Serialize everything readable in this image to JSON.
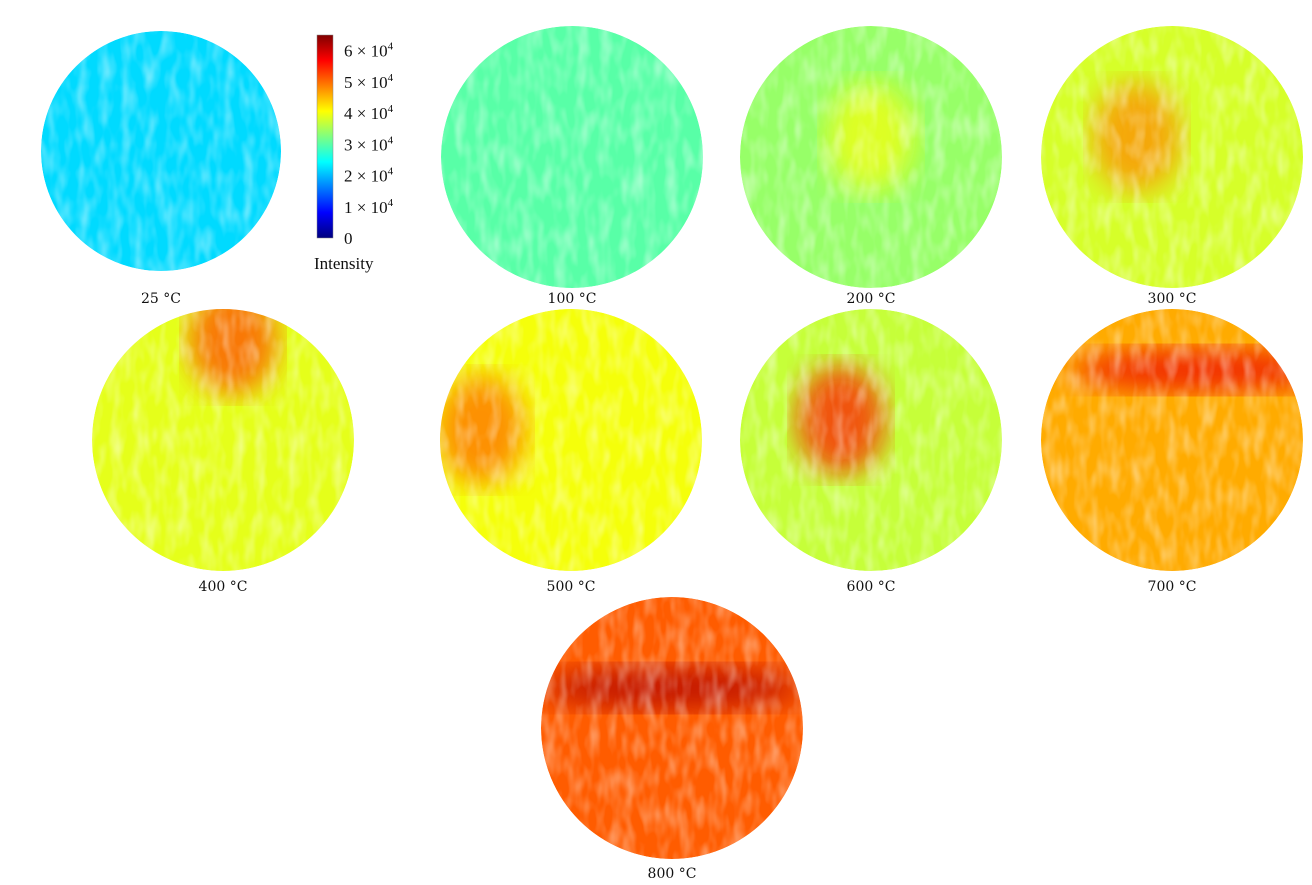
{
  "chart_data": {
    "type": "heatmap",
    "colormap": "jet",
    "colorbar": {
      "label": "Intensity",
      "range": [
        0,
        65000
      ],
      "ticks": [
        {
          "value": 60000,
          "label": "6 × 10",
          "exp": "4"
        },
        {
          "value": 50000,
          "label": "5 × 10",
          "exp": "4"
        },
        {
          "value": 40000,
          "label": "4 × 10",
          "exp": "4"
        },
        {
          "value": 30000,
          "label": "3 × 10",
          "exp": "4"
        },
        {
          "value": 20000,
          "label": "2 × 10",
          "exp": "4"
        },
        {
          "value": 10000,
          "label": "1 × 10",
          "exp": "4"
        },
        {
          "value": 0,
          "label": "0",
          "exp": ""
        }
      ]
    },
    "panels": [
      {
        "label": "25 °C",
        "mean_intensity": 22000,
        "hotspots": []
      },
      {
        "label": "100 °C",
        "mean_intensity": 30000,
        "hotspots": []
      },
      {
        "label": "200 °C",
        "mean_intensity": 34000,
        "hotspots": [
          40000
        ]
      },
      {
        "label": "300 °C",
        "mean_intensity": 38000,
        "hotspots": [
          48000
        ]
      },
      {
        "label": "400 °C",
        "mean_intensity": 39000,
        "hotspots": [
          52000
        ]
      },
      {
        "label": "500 °C",
        "mean_intensity": 40000,
        "hotspots": [
          50000
        ]
      },
      {
        "label": "600 °C",
        "mean_intensity": 37000,
        "hotspots": [
          55000
        ]
      },
      {
        "label": "700 °C",
        "mean_intensity": 46000,
        "hotspots": [
          58000
        ]
      },
      {
        "label": "800 °C",
        "mean_intensity": 51000,
        "hotspots": [
          62000
        ]
      }
    ]
  }
}
